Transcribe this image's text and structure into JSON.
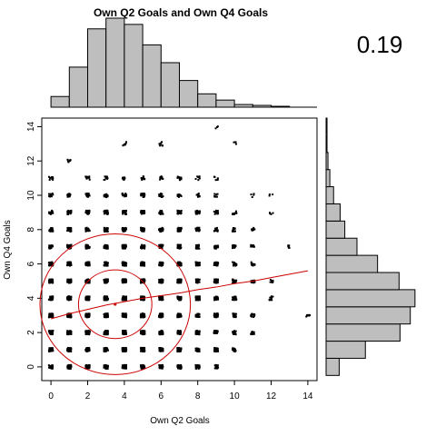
{
  "colors": {
    "hist_fill": "#bebebe",
    "hist_stroke": "#000000",
    "points": "#000000",
    "fit": "#cc0000"
  },
  "chart_data": {
    "type": "scatter",
    "title": "Own Q2 Goals and Own Q4 Goals",
    "correlation_label": "0.19",
    "xlabel": "Own Q2 Goals",
    "ylabel": "Own Q4 Goals",
    "xlim": [
      -0.5,
      14.5
    ],
    "ylim": [
      -0.8,
      14.5
    ],
    "x_ticks": [
      0,
      2,
      4,
      6,
      8,
      10,
      12,
      14
    ],
    "y_ticks": [
      0,
      2,
      4,
      6,
      8,
      10,
      12,
      14
    ],
    "grid": false,
    "points": [
      [
        0,
        0
      ],
      [
        0,
        1
      ],
      [
        0,
        2
      ],
      [
        0,
        3
      ],
      [
        0,
        4
      ],
      [
        0,
        5
      ],
      [
        0,
        6
      ],
      [
        0,
        7
      ],
      [
        0,
        8
      ],
      [
        0,
        9
      ],
      [
        0,
        10
      ],
      [
        0,
        11
      ],
      [
        1,
        0
      ],
      [
        1,
        1
      ],
      [
        1,
        2
      ],
      [
        1,
        3
      ],
      [
        1,
        4
      ],
      [
        1,
        5
      ],
      [
        1,
        6
      ],
      [
        1,
        7
      ],
      [
        1,
        8
      ],
      [
        1,
        9
      ],
      [
        1,
        10
      ],
      [
        1,
        12
      ],
      [
        2,
        0
      ],
      [
        2,
        1
      ],
      [
        2,
        2
      ],
      [
        2,
        3
      ],
      [
        2,
        4
      ],
      [
        2,
        5
      ],
      [
        2,
        6
      ],
      [
        2,
        7
      ],
      [
        2,
        8
      ],
      [
        2,
        9
      ],
      [
        2,
        10
      ],
      [
        2,
        11
      ],
      [
        3,
        0
      ],
      [
        3,
        1
      ],
      [
        3,
        2
      ],
      [
        3,
        3
      ],
      [
        3,
        4
      ],
      [
        3,
        5
      ],
      [
        3,
        6
      ],
      [
        3,
        7
      ],
      [
        3,
        8
      ],
      [
        3,
        9
      ],
      [
        3,
        10
      ],
      [
        3,
        11
      ],
      [
        4,
        0
      ],
      [
        4,
        1
      ],
      [
        4,
        2
      ],
      [
        4,
        3
      ],
      [
        4,
        4
      ],
      [
        4,
        5
      ],
      [
        4,
        6
      ],
      [
        4,
        7
      ],
      [
        4,
        8
      ],
      [
        4,
        9
      ],
      [
        4,
        10
      ],
      [
        4,
        11
      ],
      [
        4,
        13
      ],
      [
        5,
        0
      ],
      [
        5,
        1
      ],
      [
        5,
        2
      ],
      [
        5,
        3
      ],
      [
        5,
        4
      ],
      [
        5,
        5
      ],
      [
        5,
        6
      ],
      [
        5,
        7
      ],
      [
        5,
        8
      ],
      [
        5,
        9
      ],
      [
        5,
        10
      ],
      [
        5,
        11
      ],
      [
        6,
        0
      ],
      [
        6,
        1
      ],
      [
        6,
        2
      ],
      [
        6,
        3
      ],
      [
        6,
        4
      ],
      [
        6,
        5
      ],
      [
        6,
        6
      ],
      [
        6,
        7
      ],
      [
        6,
        8
      ],
      [
        6,
        9
      ],
      [
        6,
        10
      ],
      [
        6,
        11
      ],
      [
        6,
        13
      ],
      [
        7,
        0
      ],
      [
        7,
        1
      ],
      [
        7,
        2
      ],
      [
        7,
        3
      ],
      [
        7,
        4
      ],
      [
        7,
        5
      ],
      [
        7,
        6
      ],
      [
        7,
        7
      ],
      [
        7,
        8
      ],
      [
        7,
        9
      ],
      [
        7,
        10
      ],
      [
        7,
        11
      ],
      [
        8,
        0
      ],
      [
        8,
        1
      ],
      [
        8,
        2
      ],
      [
        8,
        3
      ],
      [
        8,
        4
      ],
      [
        8,
        5
      ],
      [
        8,
        6
      ],
      [
        8,
        7
      ],
      [
        8,
        8
      ],
      [
        8,
        9
      ],
      [
        8,
        10
      ],
      [
        8,
        11
      ],
      [
        9,
        0
      ],
      [
        9,
        1
      ],
      [
        9,
        2
      ],
      [
        9,
        3
      ],
      [
        9,
        4
      ],
      [
        9,
        5
      ],
      [
        9,
        6
      ],
      [
        9,
        7
      ],
      [
        9,
        8
      ],
      [
        9,
        9
      ],
      [
        9,
        10
      ],
      [
        9,
        11
      ],
      [
        9,
        14
      ],
      [
        10,
        1
      ],
      [
        10,
        2
      ],
      [
        10,
        3
      ],
      [
        10,
        4
      ],
      [
        10,
        5
      ],
      [
        10,
        6
      ],
      [
        10,
        7
      ],
      [
        10,
        8
      ],
      [
        10,
        9
      ],
      [
        10,
        13
      ],
      [
        11,
        2
      ],
      [
        11,
        3
      ],
      [
        11,
        5
      ],
      [
        11,
        6
      ],
      [
        11,
        7
      ],
      [
        11,
        8
      ],
      [
        11,
        10
      ],
      [
        12,
        4
      ],
      [
        12,
        5
      ],
      [
        12,
        9
      ],
      [
        12,
        10
      ],
      [
        13,
        7
      ],
      [
        14,
        3
      ]
    ],
    "point_density_x": [
      0.45,
      0.75,
      0.95,
      1.0,
      1.0,
      0.95,
      0.8,
      0.6,
      0.4,
      0.25,
      0.12,
      0.06,
      0.03,
      0.02,
      0.01
    ],
    "point_density_y": [
      0.5,
      0.8,
      0.95,
      1.0,
      1.0,
      0.9,
      0.75,
      0.55,
      0.35,
      0.2,
      0.1,
      0.05,
      0.02,
      0.02,
      0.01
    ],
    "fit_line": {
      "x": [
        0,
        1,
        2,
        3,
        4,
        5,
        6,
        7,
        8,
        9,
        10,
        11,
        12,
        13,
        14
      ],
      "y": [
        2.8,
        3.1,
        3.35,
        3.6,
        3.8,
        4.0,
        4.15,
        4.3,
        4.5,
        4.65,
        4.85,
        5.0,
        5.2,
        5.4,
        5.6
      ]
    },
    "mean_point": [
      3.5,
      3.65
    ],
    "ellipses": [
      {
        "cx": 3.5,
        "cy": 3.65,
        "rx": 2.0,
        "ry": 2.0
      },
      {
        "cx": 3.5,
        "cy": 3.65,
        "rx": 4.1,
        "ry": 4.1
      }
    ],
    "hist_x": {
      "breaks": [
        0,
        1,
        2,
        3,
        4,
        5,
        6,
        7,
        8,
        9,
        10,
        11,
        12,
        13,
        14
      ],
      "counts": [
        0.12,
        0.45,
        0.88,
        1.0,
        0.93,
        0.7,
        0.5,
        0.3,
        0.15,
        0.08,
        0.03,
        0.02,
        0.01,
        0.0
      ]
    },
    "hist_y": {
      "breaks": [
        -0.5,
        0.5,
        1.5,
        2.5,
        3.5,
        4.5,
        5.5,
        6.5,
        7.5,
        8.5,
        9.5,
        10.5,
        11.5,
        12.5,
        13.5,
        14.5
      ],
      "counts": [
        0.14,
        0.42,
        0.79,
        0.9,
        0.95,
        0.78,
        0.55,
        0.33,
        0.2,
        0.15,
        0.08,
        0.04,
        0.02,
        0.01,
        0.01
      ]
    }
  }
}
